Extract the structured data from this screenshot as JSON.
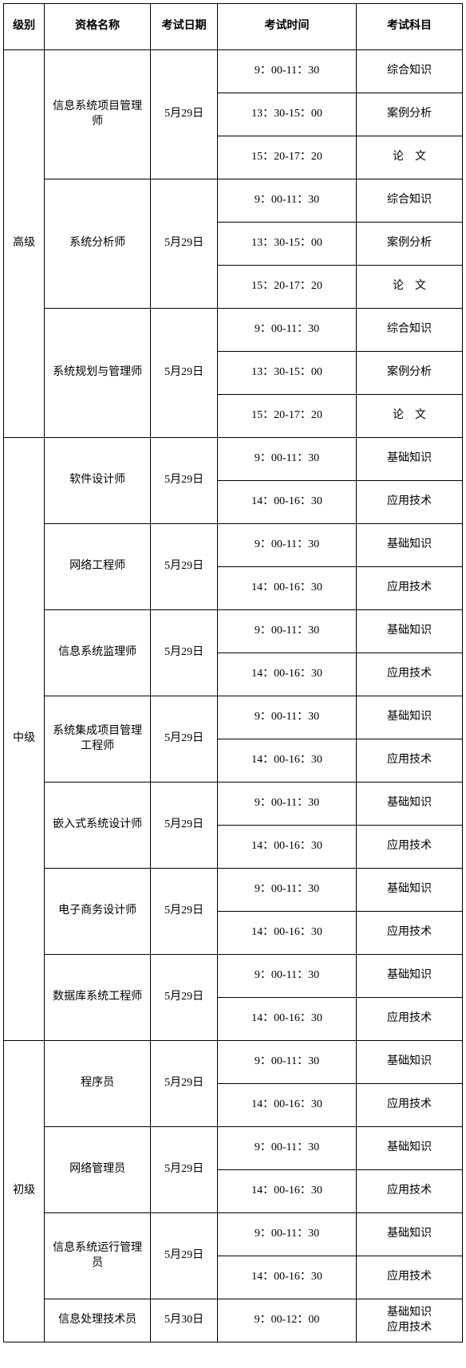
{
  "headers": {
    "level": "级别",
    "name": "资格名称",
    "date": "考试日期",
    "time": "考试时间",
    "subject": "考试科目"
  },
  "levels": [
    {
      "label": "高级",
      "certs": [
        {
          "name": "信息系统项目管理师",
          "date": "5月29日",
          "slots": [
            {
              "time": "9：00-11：30",
              "subject": "综合知识"
            },
            {
              "time": "13：30-15：00",
              "subject": "案例分析"
            },
            {
              "time": "15：20-17：20",
              "subject": "论　文",
              "spaced": true
            }
          ]
        },
        {
          "name": "系统分析师",
          "date": "5月29日",
          "slots": [
            {
              "time": "9：00-11：30",
              "subject": "综合知识"
            },
            {
              "time": "13：30-15：00",
              "subject": "案例分析"
            },
            {
              "time": "15：20-17：20",
              "subject": "论　文",
              "spaced": true
            }
          ]
        },
        {
          "name": "系统规划与管理师",
          "date": "5月29日",
          "slots": [
            {
              "time": "9：00-11：30",
              "subject": "综合知识"
            },
            {
              "time": "13：30-15：00",
              "subject": "案例分析"
            },
            {
              "time": "15：20-17：20",
              "subject": "论　文",
              "spaced": true
            }
          ]
        }
      ]
    },
    {
      "label": "中级",
      "certs": [
        {
          "name": "软件设计师",
          "date": "5月29日",
          "slots": [
            {
              "time": "9：00-11：30",
              "subject": "基础知识"
            },
            {
              "time": "14：00-16：30",
              "subject": "应用技术"
            }
          ]
        },
        {
          "name": "网络工程师",
          "date": "5月29日",
          "slots": [
            {
              "time": "9：00-11：30",
              "subject": "基础知识"
            },
            {
              "time": "14：00-16：30",
              "subject": "应用技术"
            }
          ]
        },
        {
          "name": "信息系统监理师",
          "date": "5月29日",
          "slots": [
            {
              "time": "9：00-11：30",
              "subject": "基础知识"
            },
            {
              "time": "14：00-16：30",
              "subject": "应用技术"
            }
          ]
        },
        {
          "name": "系统集成项目管理工程师",
          "date": "5月29日",
          "slots": [
            {
              "time": "9：00-11：30",
              "subject": "基础知识"
            },
            {
              "time": "14：00-16：30",
              "subject": "应用技术"
            }
          ]
        },
        {
          "name": "嵌入式系统设计师",
          "date": "5月29日",
          "slots": [
            {
              "time": "9：00-11：30",
              "subject": "基础知识"
            },
            {
              "time": "14：00-16：30",
              "subject": "应用技术"
            }
          ]
        },
        {
          "name": "电子商务设计师",
          "date": "5月29日",
          "slots": [
            {
              "time": "9：00-11：30",
              "subject": "基础知识"
            },
            {
              "time": "14：00-16：30",
              "subject": "应用技术"
            }
          ]
        },
        {
          "name": "数据库系统工程师",
          "date": "5月29日",
          "slots": [
            {
              "time": "9：00-11：30",
              "subject": "基础知识"
            },
            {
              "time": "14：00-16：30",
              "subject": "应用技术"
            }
          ]
        }
      ]
    },
    {
      "label": "初级",
      "certs": [
        {
          "name": "程序员",
          "date": "5月29日",
          "slots": [
            {
              "time": "9：00-11：30",
              "subject": "基础知识"
            },
            {
              "time": "14：00-16：30",
              "subject": "应用技术"
            }
          ]
        },
        {
          "name": "网络管理员",
          "date": "5月29日",
          "slots": [
            {
              "time": "9：00-11：30",
              "subject": "基础知识"
            },
            {
              "time": "14：00-16：30",
              "subject": "应用技术"
            }
          ]
        },
        {
          "name": "信息系统运行管理员",
          "date": "5月29日",
          "slots": [
            {
              "time": "9：00-11：30",
              "subject": "基础知识"
            },
            {
              "time": "14：00-16：30",
              "subject": "应用技术"
            }
          ]
        },
        {
          "name": "信息处理技术员",
          "date": "5月30日",
          "slots": [
            {
              "time": "9：00-12：00",
              "subject": "基础知识\n应用技术"
            }
          ]
        }
      ]
    }
  ]
}
